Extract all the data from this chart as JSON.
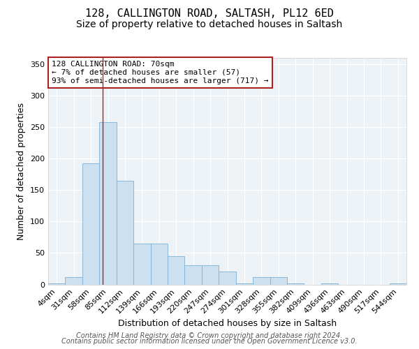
{
  "title_line1": "128, CALLINGTON ROAD, SALTASH, PL12 6ED",
  "title_line2": "Size of property relative to detached houses in Saltash",
  "xlabel": "Distribution of detached houses by size in Saltash",
  "ylabel": "Number of detached properties",
  "bar_labels": [
    "4sqm",
    "31sqm",
    "58sqm",
    "85sqm",
    "112sqm",
    "139sqm",
    "166sqm",
    "193sqm",
    "220sqm",
    "247sqm",
    "274sqm",
    "301sqm",
    "328sqm",
    "355sqm",
    "382sqm",
    "409sqm",
    "436sqm",
    "463sqm",
    "490sqm",
    "517sqm",
    "544sqm"
  ],
  "bar_values": [
    2,
    12,
    192,
    258,
    165,
    65,
    65,
    45,
    30,
    30,
    20,
    2,
    12,
    12,
    2,
    0,
    2,
    0,
    0,
    0,
    2
  ],
  "bar_color": "#cce0f0",
  "bar_edgecolor": "#7ab0d4",
  "ylim": [
    0,
    360
  ],
  "yticks": [
    0,
    50,
    100,
    150,
    200,
    250,
    300,
    350
  ],
  "vline_x": 2.7,
  "vline_color": "#aa2222",
  "annotation_text": "128 CALLINGTON ROAD: 70sqm\n← 7% of detached houses are smaller (57)\n93% of semi-detached houses are larger (717) →",
  "annotation_box_facecolor": "#ffffff",
  "annotation_box_edgecolor": "#aa2222",
  "footer_line1": "Contains HM Land Registry data © Crown copyright and database right 2024.",
  "footer_line2": "Contains public sector information licensed under the Open Government Licence v3.0.",
  "plot_bg_color": "#edf2f7",
  "grid_color": "#ffffff",
  "title_fontsize": 11,
  "subtitle_fontsize": 10,
  "axis_label_fontsize": 9,
  "tick_fontsize": 8,
  "annotation_fontsize": 8,
  "footer_fontsize": 7
}
